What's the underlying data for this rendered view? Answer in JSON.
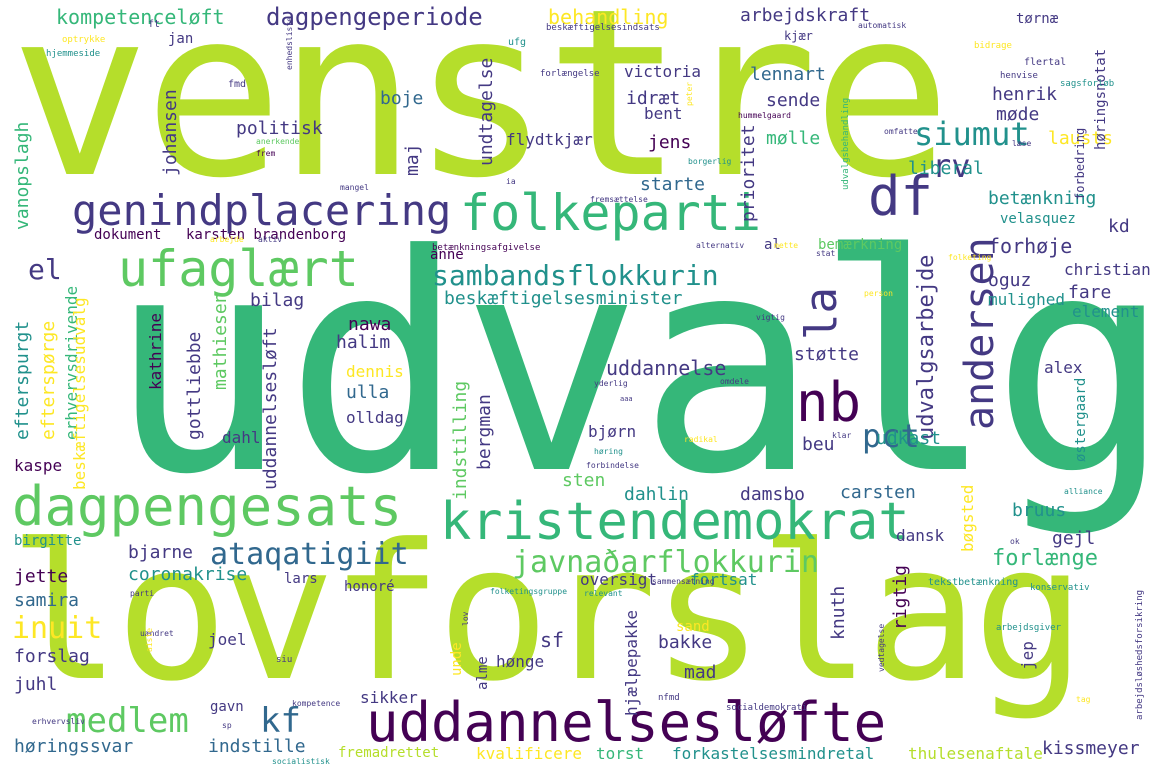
{
  "palette": {
    "lime": "#b5de2b",
    "green": "#5ec962",
    "teal": "#35b779",
    "aqua": "#21918c",
    "blue": "#31688e",
    "indigo": "#443983",
    "purple": "#440154",
    "yellow": "#fde725"
  },
  "words": {
    "w01": "venstre",
    "w02": "udvalg",
    "w03": "lovforslag",
    "w04": "uddannelsesløfte",
    "w05": "kristendemokrat",
    "w06": "dagpengesats",
    "w07": "folkeparti",
    "w08": "genindplacering",
    "w09": "ufaglært",
    "w10": "sambandsflokkurin",
    "w11": "nb",
    "w12": "df",
    "w13": "andersen",
    "w14": "la",
    "w15": "medlem",
    "w16": "javnaðarflokkurin",
    "w17": "ataqatigiit",
    "w18": "dagpengeperiode",
    "w19": "siumut",
    "w20": "kompetenceløft",
    "w21": "behandling",
    "w22": "arbejdskraft",
    "w23": "beskæftigelsesminister",
    "w24": "el",
    "w25": "kf",
    "w26": "rv",
    "w27": "pct",
    "w28": "inuit",
    "w29": "forlænge",
    "w30": "coronakrise",
    "w31": "uddannelse",
    "w32": "udvalgsarbejde",
    "w33": "betænkning",
    "w34": "forhøje",
    "w35": "liberal",
    "w36": "lennart",
    "w37": "victoria",
    "w38": "idræt",
    "w39": "boje",
    "w40": "politisk",
    "w41": "undtagelse",
    "w42": "henrik",
    "w43": "møde",
    "w44": "mølle",
    "w45": "jens",
    "w46": "starte",
    "w47": "lausts",
    "w48": "bent",
    "w49": "flydtkjær",
    "w50": "sende",
    "w51": "prioritet",
    "w52": "johansen",
    "w53": "maj",
    "w54": "vanopslagh",
    "w55": "efterspurgt",
    "w56": "efterspørge",
    "w57": "erhvervsdrivende",
    "w58": "uddannelsesløft",
    "w59": "beskæftigelsesudvalg",
    "w60": "gottliebbe",
    "w61": "mathiesen",
    "w62": "kathrine",
    "w63": "bilag",
    "w64": "halim",
    "w65": "nawa",
    "w66": "støtte",
    "w67": "ulla",
    "w68": "olldag",
    "w69": "dennis",
    "w70": "dahl",
    "w71": "kaspe",
    "w72": "bjørn",
    "w73": "beu",
    "w74": "indstilling",
    "w75": "bergman",
    "w76": "udkast",
    "w77": "sten",
    "w78": "dahlin",
    "w79": "damsbo",
    "w80": "carsten",
    "w81": "bøgsted",
    "w82": "bruus",
    "w83": "bjarne",
    "w84": "jette",
    "w85": "samira",
    "w86": "forslag",
    "w87": "juhl",
    "w88": "høringssvar",
    "w89": "indstille",
    "w90": "gavn",
    "w91": "joel",
    "w92": "lars",
    "w93": "honoré",
    "w94": "oversigt",
    "w95": "fortsat",
    "w96": "dansk",
    "w97": "gejl",
    "w98": "rigtig",
    "w99": "knuth",
    "w100": "sf",
    "w101": "bakke",
    "w102": "mad",
    "w103": "hønge",
    "w104": "sikker",
    "w105": "kissmeyer",
    "w106": "fremadrettet",
    "w107": "kvalificere",
    "w108": "torst",
    "w109": "forkastelsesmindretal",
    "w110": "thulesenaftale",
    "w111": "jep",
    "w112": "alme",
    "w113": "hjælpepakke",
    "w114": "unde",
    "w115": "sand",
    "w116": "christian",
    "w117": "fare",
    "w118": "oguz",
    "w119": "mulighed",
    "w120": "element",
    "w121": "kd",
    "w122": "alex",
    "w123": "østergaard",
    "w124": "dokument",
    "w125": "karsten brandenborg",
    "w126": "anne",
    "w127": "al",
    "w128": "bemærkning",
    "w129": "velasquez",
    "w130": "birgitte",
    "w131": "jan",
    "w132": "tørnæ",
    "w133": "kjær",
    "w134": "høringsnotat",
    "w135": "forbedring",
    "w136": "udvalgsbehandling",
    "w137": "anerkende",
    "w138": "ft",
    "w139": "optrykke",
    "w140": "hjemmeside",
    "w141": "fmd",
    "w142": "frem",
    "w143": "mangel",
    "w144": "ufg",
    "w145": "beskæftigelsesindsats",
    "w146": "automatisk",
    "w147": "bidrage",
    "w148": "flertal",
    "w149": "henvise",
    "w150": "sagsforløb",
    "w151": "forlængelse",
    "w152": "peter",
    "w153": "hummelgaard",
    "w154": "læse",
    "w155": "omfatte",
    "w156": "borgerlig",
    "w157": "ia",
    "w158": "fremsættelse",
    "w159": "betænkningsafgivelse",
    "w160": "alternativ",
    "w161": "mette",
    "w162": "stat",
    "w163": "folketing",
    "w164": "person",
    "w165": "vigtig",
    "w166": "yderlig",
    "w167": "omdele",
    "w168": "aaa",
    "w169": "radikal",
    "w170": "klar",
    "w171": "høring",
    "w172": "forbindelse",
    "w173": "alliance",
    "w174": "sammensætning",
    "w175": "relevant",
    "w176": "folketingsgruppe",
    "w177": "parti",
    "w178": "tekstbetænkning",
    "w179": "konservativ",
    "w180": "arbejdsgiver",
    "w181": "arbejdsløshedsforsikring",
    "w182": "kompetence",
    "w183": "erhvervsliv",
    "w184": "socialdemokrati",
    "w185": "nfmd",
    "w186": "socialistisk",
    "w187": "siu",
    "w188": "sp",
    "w189": "uændret",
    "w190": "lov",
    "w191": "vedtagelse",
    "w192": "arbejde",
    "w193": "aktiv",
    "w194": "enhedsliste",
    "w195": "ok",
    "w196": "tag",
    "w197": "mette",
    "w198": "aiste"
  }
}
